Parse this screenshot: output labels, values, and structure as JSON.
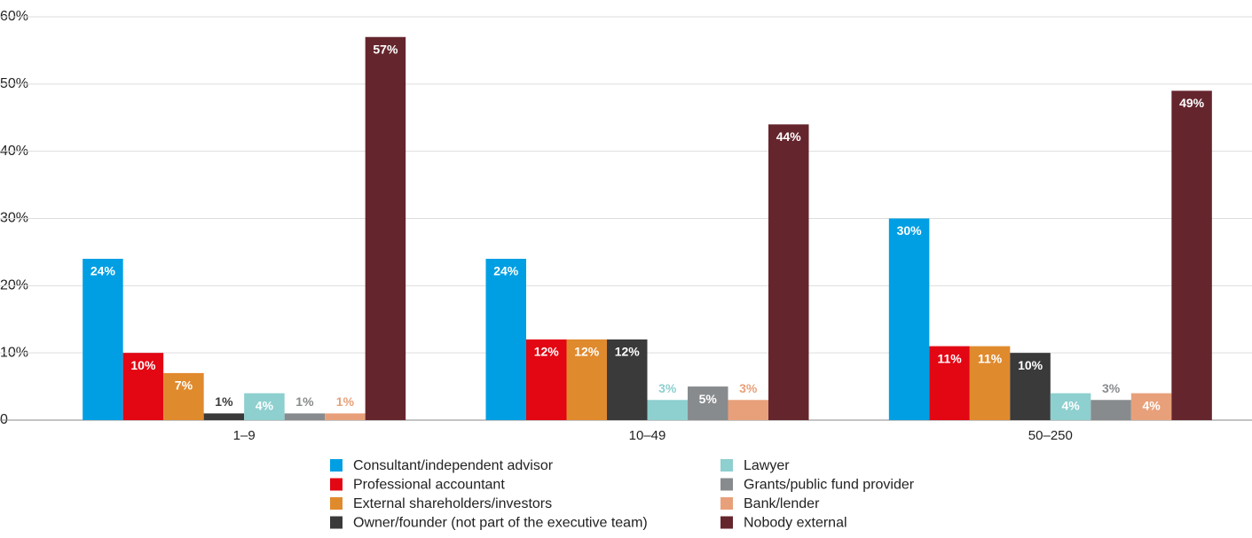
{
  "chart_data": {
    "type": "bar",
    "categories": [
      "1–9",
      "10–49",
      "50–250"
    ],
    "series": [
      {
        "name": "Consultant/independent advisor",
        "color": "#009fe3",
        "values": [
          24,
          24,
          30
        ],
        "value_labels": [
          "24%",
          "24%",
          "30%"
        ]
      },
      {
        "name": "Professional accountant",
        "color": "#e30613",
        "values": [
          10,
          12,
          11
        ],
        "value_labels": [
          "10%",
          "12%",
          "11%"
        ]
      },
      {
        "name": "External shareholders/investors",
        "color": "#e08a2e",
        "values": [
          7,
          12,
          11
        ],
        "value_labels": [
          "7%",
          "12%",
          "11%"
        ]
      },
      {
        "name": "Owner/founder (not part of the executive team)",
        "color": "#3a3a3a",
        "values": [
          1,
          12,
          10
        ],
        "value_labels": [
          "1%",
          "12%",
          "10%"
        ]
      },
      {
        "name": "Lawyer",
        "color": "#8ecfcf",
        "values": [
          4,
          3,
          4
        ],
        "value_labels": [
          "4%",
          "3%",
          "4%"
        ]
      },
      {
        "name": "Grants/public fund provider",
        "color": "#888b8d",
        "values": [
          1,
          5,
          3
        ],
        "value_labels": [
          "1%",
          "5%",
          "3%"
        ]
      },
      {
        "name": "Bank/lender",
        "color": "#e8a07a",
        "values": [
          1,
          3,
          4
        ],
        "value_labels": [
          "1%",
          "3%",
          "4%"
        ]
      },
      {
        "name": "Nobody external",
        "color": "#65252d",
        "values": [
          57,
          44,
          49
        ],
        "value_labels": [
          "57%",
          "44%",
          "49%"
        ]
      }
    ],
    "ylim": [
      0,
      60
    ],
    "yticks": [
      0,
      {
        "value": 10,
        "label": "10%"
      },
      {
        "value": 20,
        "label": "20%"
      },
      {
        "value": 30,
        "label": "30%"
      },
      {
        "value": 40,
        "label": "40%"
      },
      {
        "value": 50,
        "label": "50%"
      },
      {
        "value": 60,
        "label": "60%"
      }
    ],
    "grid": true
  }
}
